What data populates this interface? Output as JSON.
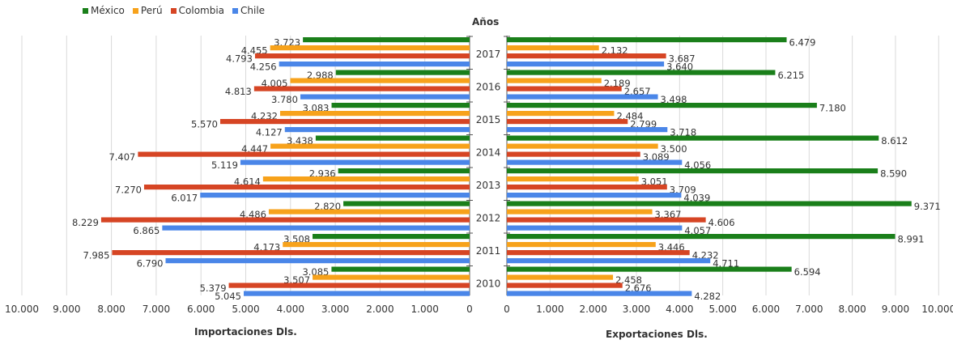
{
  "chart_data": {
    "type": "bar",
    "orientation": "horizontal",
    "layout": "butterfly",
    "center_title": "Años",
    "categories": [
      "2017",
      "2016",
      "2015",
      "2014",
      "2013",
      "2012",
      "2011",
      "2010"
    ],
    "legend": {
      "position": "top-left"
    },
    "grid": true,
    "series_meta": [
      {
        "name": "México",
        "color": "#1a7f1a"
      },
      {
        "name": "Perú",
        "color": "#f7a21b"
      },
      {
        "name": "Colombia",
        "color": "#d64524"
      },
      {
        "name": "Chile",
        "color": "#4a86e8"
      }
    ],
    "panels": [
      {
        "id": "importaciones",
        "xlabel": "Importaciones Dls.",
        "direction": "left",
        "xlim": [
          0,
          10000
        ],
        "ticks": [
          0,
          1000,
          2000,
          3000,
          4000,
          5000,
          6000,
          7000,
          8000,
          9000,
          10000
        ],
        "tick_labels": [
          "0",
          "1.000",
          "2.000",
          "3.000",
          "4.000",
          "5.000",
          "6.000",
          "7.000",
          "8.000",
          "9.000",
          "10.000"
        ],
        "series": [
          {
            "name": "México",
            "values": [
              3723,
              2988,
              3083,
              3438,
              2936,
              2820,
              3508,
              3085
            ],
            "labels": [
              "3.723",
              "2.988",
              "3.083",
              "3.438",
              "2.936",
              "2.820",
              "3.508",
              "3.085"
            ]
          },
          {
            "name": "Perú",
            "values": [
              4455,
              4005,
              4232,
              4447,
              4614,
              4486,
              4173,
              3507
            ],
            "labels": [
              "4.455",
              "4.005",
              "4.232",
              "4.447",
              "4.614",
              "4.486",
              "4.173",
              "3.507"
            ]
          },
          {
            "name": "Colombia",
            "values": [
              4793,
              4813,
              5570,
              7407,
              7270,
              8229,
              7985,
              5379
            ],
            "labels": [
              "4.793",
              "4.813",
              "5.570",
              "7.407",
              "7.270",
              "8.229",
              "7.985",
              "5.379"
            ]
          },
          {
            "name": "Chile",
            "values": [
              4256,
              3780,
              4127,
              5119,
              6017,
              6865,
              6790,
              5045
            ],
            "labels": [
              "4.256",
              "3.780",
              "4.127",
              "5.119",
              "6.017",
              "6.865",
              "6.790",
              "5.045"
            ]
          }
        ]
      },
      {
        "id": "exportaciones",
        "xlabel": "Exportaciones Dls.",
        "direction": "right",
        "xlim": [
          0,
          10000
        ],
        "ticks": [
          0,
          1000,
          2000,
          3000,
          4000,
          5000,
          6000,
          7000,
          8000,
          9000,
          10000
        ],
        "tick_labels": [
          "0",
          "1.000",
          "2.000",
          "3.000",
          "4.000",
          "5.000",
          "6.000",
          "7.000",
          "8.000",
          "9.000",
          "10.000"
        ],
        "series": [
          {
            "name": "México",
            "values": [
              6479,
              6215,
              7180,
              8612,
              8590,
              9371,
              8991,
              6594
            ],
            "labels": [
              "6.479",
              "6.215",
              "7.180",
              "8.612",
              "8.590",
              "9.371",
              "8.991",
              "6.594"
            ]
          },
          {
            "name": "Perú",
            "values": [
              2132,
              2189,
              2484,
              3500,
              3051,
              3367,
              3446,
              2458
            ],
            "labels": [
              "2.132",
              "2.189",
              "2.484",
              "3.500",
              "3.051",
              "3.367",
              "3.446",
              "2.458"
            ]
          },
          {
            "name": "Colombia",
            "values": [
              3687,
              2657,
              2799,
              3089,
              3709,
              4606,
              4232,
              2676
            ],
            "labels": [
              "3.687",
              "2.657",
              "2.799",
              "3.089",
              "3.709",
              "4.606",
              "4.232",
              "2.676"
            ]
          },
          {
            "name": "Chile",
            "values": [
              3640,
              3498,
              3718,
              4056,
              4039,
              4057,
              4711,
              4282
            ],
            "labels": [
              "3.640",
              "3.498",
              "3.718",
              "4.056",
              "4.039",
              "4.057",
              "4.711",
              "4.282"
            ]
          }
        ]
      }
    ]
  }
}
